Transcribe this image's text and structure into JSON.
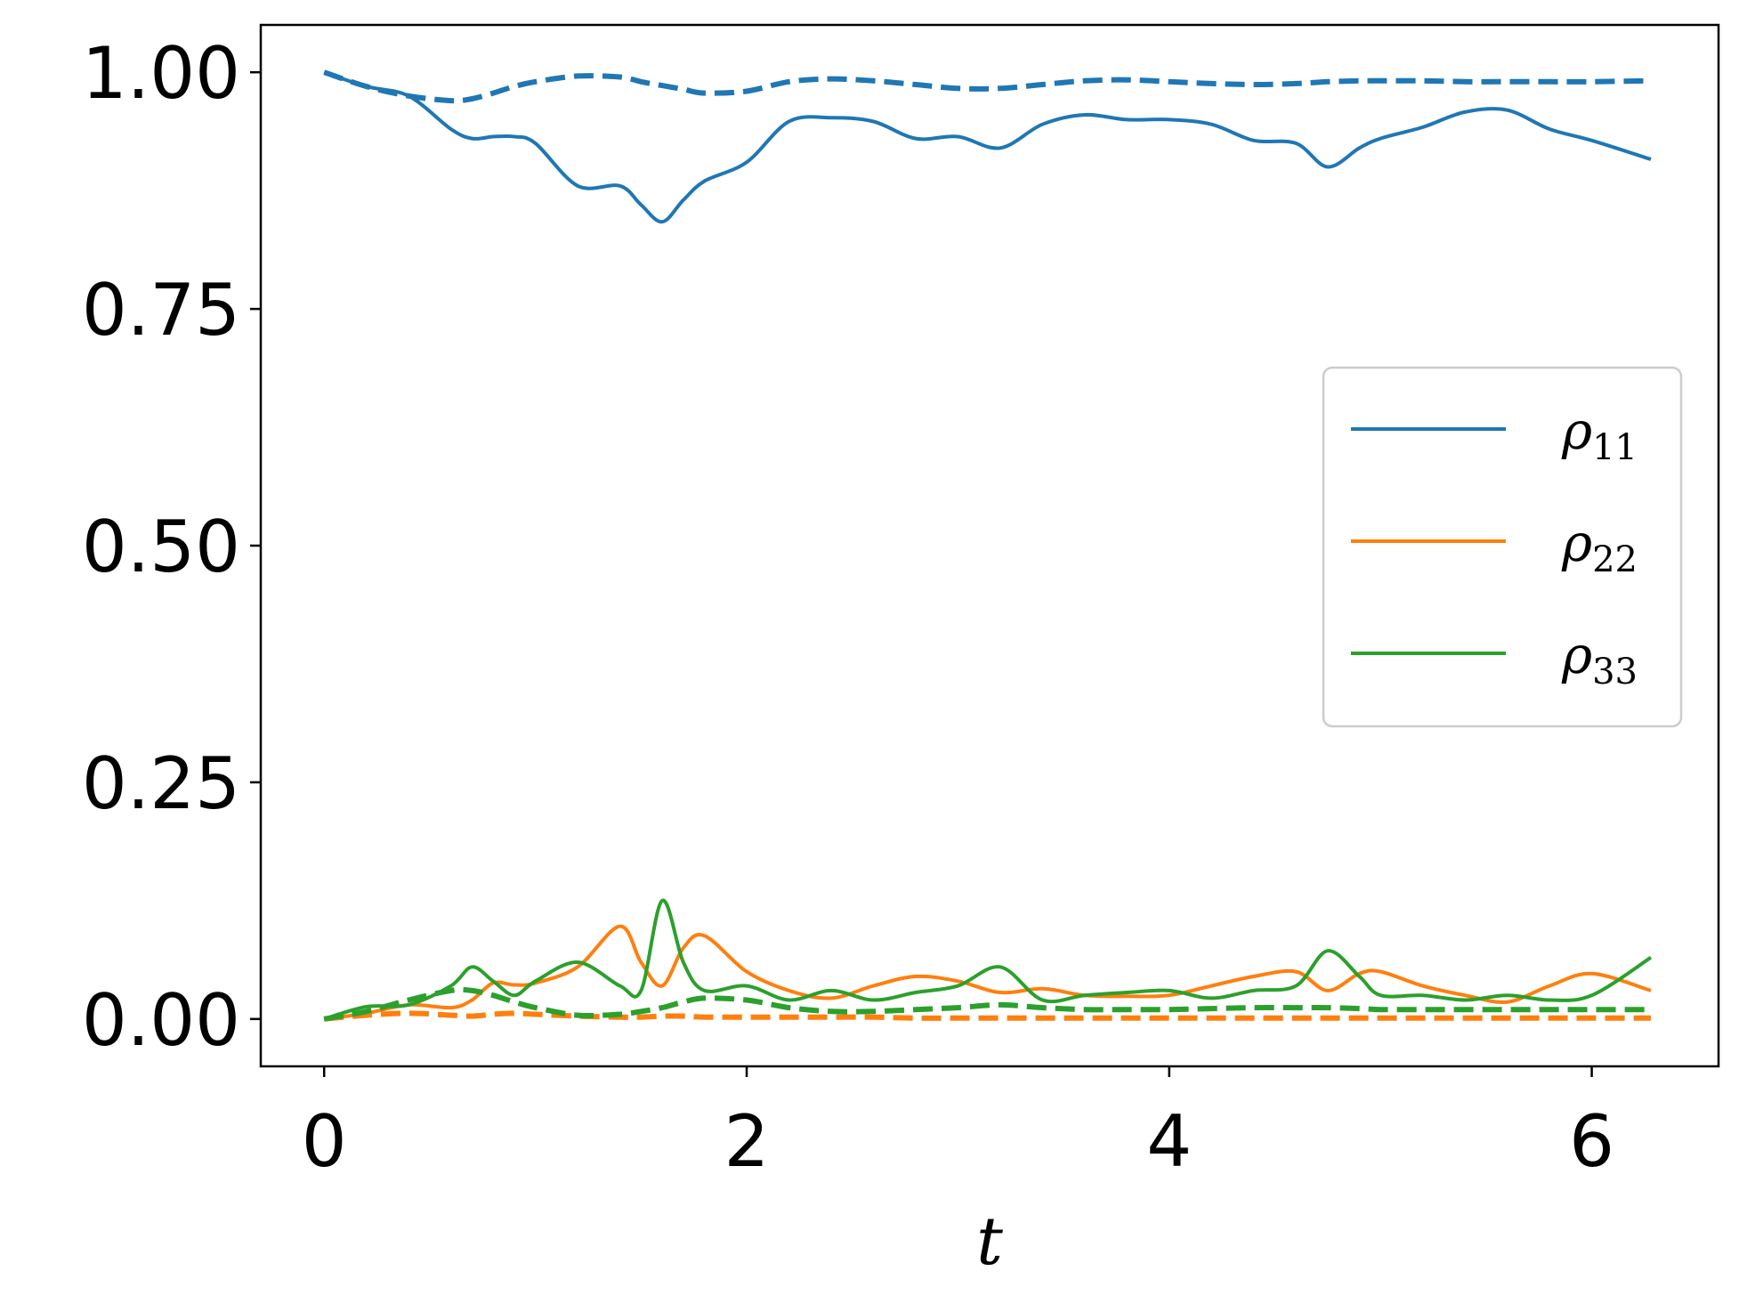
{
  "chart_data": {
    "type": "line",
    "title": "",
    "xlabel": "t",
    "ylabel": "",
    "xlim": [
      -0.3,
      6.6
    ],
    "ylim": [
      -0.05,
      1.05
    ],
    "xticks": [
      "0",
      "2",
      "4",
      "6"
    ],
    "xtick_values": [
      0,
      2,
      4,
      6
    ],
    "yticks": [
      "0.00",
      "0.25",
      "0.50",
      "0.75",
      "1.00"
    ],
    "ytick_values": [
      0,
      0.25,
      0.5,
      0.75,
      1.0
    ],
    "grid": false,
    "legend_position": "center-right",
    "x": [
      0,
      0.2,
      0.4,
      0.6,
      0.7,
      0.8,
      0.9,
      1.0,
      1.2,
      1.4,
      1.5,
      1.6,
      1.7,
      1.8,
      2.0,
      2.2,
      2.4,
      2.6,
      2.8,
      3.0,
      3.2,
      3.4,
      3.6,
      3.8,
      4.0,
      4.2,
      4.4,
      4.6,
      4.75,
      4.9,
      5.0,
      5.2,
      5.4,
      5.6,
      5.8,
      6.0,
      6.28
    ],
    "series": [
      {
        "name": "ρ11",
        "label_base": "ρ",
        "label_sub": "11",
        "color": "#1f77b4",
        "style": "solid",
        "values": [
          1.0,
          0.985,
          0.975,
          0.94,
          0.93,
          0.932,
          0.932,
          0.925,
          0.88,
          0.88,
          0.86,
          0.842,
          0.865,
          0.885,
          0.905,
          0.948,
          0.952,
          0.948,
          0.93,
          0.932,
          0.92,
          0.945,
          0.955,
          0.95,
          0.95,
          0.945,
          0.928,
          0.925,
          0.9,
          0.92,
          0.93,
          0.942,
          0.958,
          0.96,
          0.94,
          0.928,
          0.908
        ]
      },
      {
        "name": "",
        "color": "#1f77b4",
        "style": "dashed",
        "values": [
          1.0,
          0.985,
          0.975,
          0.97,
          0.972,
          0.978,
          0.985,
          0.99,
          0.996,
          0.995,
          0.99,
          0.986,
          0.982,
          0.978,
          0.98,
          0.99,
          0.993,
          0.991,
          0.987,
          0.983,
          0.983,
          0.987,
          0.991,
          0.992,
          0.99,
          0.988,
          0.987,
          0.988,
          0.99,
          0.991,
          0.991,
          0.991,
          0.99,
          0.99,
          0.99,
          0.99,
          0.991
        ]
      },
      {
        "name": "ρ22",
        "label_base": "ρ",
        "label_sub": "22",
        "color": "#ff7f0e",
        "style": "solid",
        "values": [
          0.0,
          0.006,
          0.015,
          0.012,
          0.02,
          0.038,
          0.036,
          0.038,
          0.055,
          0.098,
          0.06,
          0.035,
          0.075,
          0.088,
          0.05,
          0.03,
          0.022,
          0.035,
          0.045,
          0.04,
          0.028,
          0.032,
          0.025,
          0.024,
          0.025,
          0.035,
          0.045,
          0.05,
          0.03,
          0.048,
          0.05,
          0.035,
          0.025,
          0.018,
          0.035,
          0.048,
          0.03
        ]
      },
      {
        "name": "",
        "color": "#ff7f0e",
        "style": "dashed",
        "values": [
          0.0,
          0.004,
          0.006,
          0.004,
          0.003,
          0.005,
          0.006,
          0.005,
          0.003,
          0.002,
          0.002,
          0.003,
          0.003,
          0.002,
          0.002,
          0.002,
          0.002,
          0.002,
          0.001,
          0.001,
          0.001,
          0.001,
          0.001,
          0.001,
          0.001,
          0.001,
          0.001,
          0.001,
          0.001,
          0.001,
          0.001,
          0.001,
          0.001,
          0.001,
          0.001,
          0.001,
          0.001
        ]
      },
      {
        "name": "ρ33",
        "label_base": "ρ",
        "label_sub": "33",
        "color": "#2ca02c",
        "style": "solid",
        "values": [
          0.0,
          0.013,
          0.015,
          0.035,
          0.055,
          0.04,
          0.025,
          0.04,
          0.06,
          0.035,
          0.03,
          0.125,
          0.06,
          0.03,
          0.035,
          0.02,
          0.03,
          0.02,
          0.028,
          0.035,
          0.055,
          0.02,
          0.025,
          0.028,
          0.03,
          0.022,
          0.03,
          0.035,
          0.072,
          0.045,
          0.025,
          0.025,
          0.02,
          0.025,
          0.02,
          0.025,
          0.065
        ]
      },
      {
        "name": "",
        "color": "#2ca02c",
        "style": "dashed",
        "values": [
          0.0,
          0.008,
          0.02,
          0.03,
          0.03,
          0.025,
          0.018,
          0.012,
          0.004,
          0.005,
          0.008,
          0.012,
          0.018,
          0.022,
          0.02,
          0.012,
          0.008,
          0.008,
          0.01,
          0.012,
          0.015,
          0.012,
          0.01,
          0.01,
          0.01,
          0.011,
          0.012,
          0.012,
          0.012,
          0.011,
          0.01,
          0.01,
          0.01,
          0.01,
          0.01,
          0.01,
          0.01
        ]
      }
    ]
  }
}
